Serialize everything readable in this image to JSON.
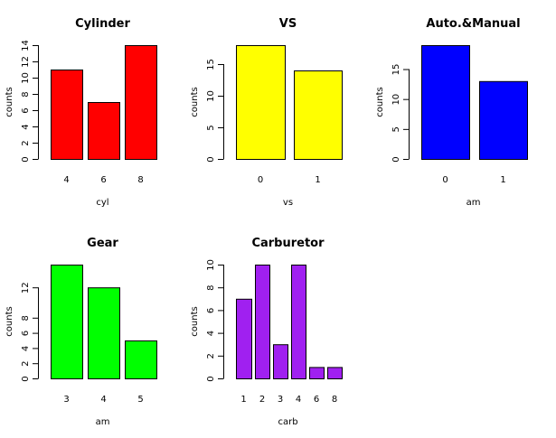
{
  "chart_data": [
    {
      "type": "bar",
      "title": "Cylinder",
      "xlabel": "cyl",
      "ylabel": "counts",
      "color": "#ff0000",
      "categories": [
        "4",
        "6",
        "8"
      ],
      "values": [
        11,
        7,
        14
      ],
      "ylim": [
        0,
        14
      ],
      "yticks": [
        0,
        2,
        4,
        6,
        8,
        10,
        12,
        14
      ]
    },
    {
      "type": "bar",
      "title": "VS",
      "xlabel": "vs",
      "ylabel": "counts",
      "color": "#ffff00",
      "categories": [
        "0",
        "1"
      ],
      "values": [
        18,
        14
      ],
      "ylim": [
        0,
        18
      ],
      "yticks": [
        0,
        5,
        10,
        15
      ]
    },
    {
      "type": "bar",
      "title": "Auto.&Manual",
      "xlabel": "am",
      "ylabel": "counts",
      "color": "#0000ff",
      "categories": [
        "0",
        "1"
      ],
      "values": [
        19,
        13
      ],
      "ylim": [
        0,
        19
      ],
      "yticks": [
        0,
        5,
        10,
        15
      ]
    },
    {
      "type": "bar",
      "title": "Gear",
      "xlabel": "am",
      "ylabel": "counts",
      "color": "#00ff00",
      "categories": [
        "3",
        "4",
        "5"
      ],
      "values": [
        15,
        12,
        5
      ],
      "ylim": [
        0,
        15
      ],
      "yticks": [
        0,
        2,
        4,
        6,
        8,
        12
      ]
    },
    {
      "type": "bar",
      "title": "Carburetor",
      "xlabel": "carb",
      "ylabel": "counts",
      "color": "#a020f0",
      "categories": [
        "1",
        "2",
        "3",
        "4",
        "6",
        "8"
      ],
      "values": [
        7,
        10,
        3,
        10,
        1,
        1
      ],
      "ylim": [
        0,
        10
      ],
      "yticks": [
        0,
        2,
        4,
        6,
        8,
        10
      ]
    }
  ]
}
